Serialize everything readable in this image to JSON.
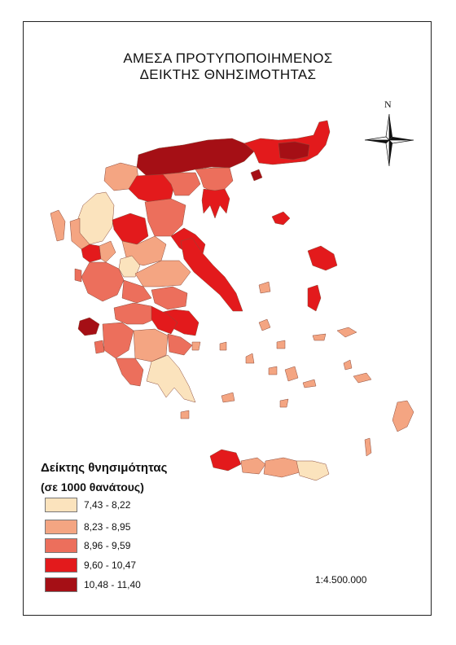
{
  "map": {
    "title_line1": "ΑΜΕΣΑ ΠΡΟΤΥΠΟΠΟΙΗΜΕΝΟΣ",
    "title_line2": "ΔΕΙΚΤΗΣ ΘΝΗΣΙΜΟΤΗΤΑΣ",
    "north_label": "N",
    "scale": "1:4.500.000",
    "legend": {
      "title": "Δείκτης θνησιμότητας",
      "subtitle": "(σε 1000 θανάτους)",
      "classes": [
        {
          "label": "7,43 - 8,22",
          "color": "#fbe3bd"
        },
        {
          "label": "8,23 - 8,95",
          "color": "#f4a582"
        },
        {
          "label": "8,96 - 9,59",
          "color": "#ec6f5c"
        },
        {
          "label": "9,60 - 10,47",
          "color": "#e31a1c"
        },
        {
          "label": "10,48 - 11,40",
          "color": "#a50f15"
        }
      ]
    }
  }
}
